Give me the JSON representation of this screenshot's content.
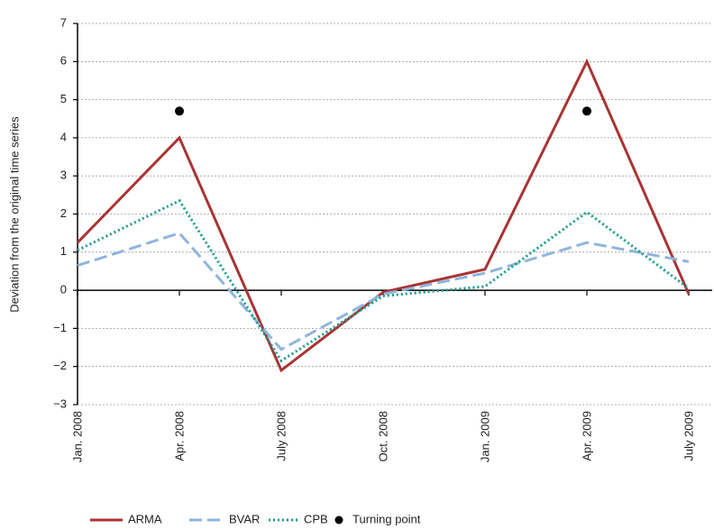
{
  "chart_data": {
    "type": "line",
    "y_label": "Deviation from the original time series",
    "categories": [
      "Jan. 2008",
      "Apr. 2008",
      "July 2008",
      "Oct. 2008",
      "Jan. 2009",
      "Apr. 2009",
      "July 2009"
    ],
    "series": [
      {
        "name": "ARMA",
        "color": "#a93434",
        "dash": "solid",
        "values": [
          1.25,
          4.0,
          -2.1,
          -0.05,
          0.55,
          6.0,
          -0.1
        ]
      },
      {
        "name": "BVAR",
        "color": "#8fb5da",
        "dash": "dashed",
        "values": [
          0.65,
          1.5,
          -1.55,
          -0.1,
          0.45,
          1.25,
          0.75
        ]
      },
      {
        "name": "CPB",
        "color": "#1a9c8c",
        "dash": "dotted",
        "values": [
          1.05,
          2.35,
          -1.85,
          -0.15,
          0.1,
          2.05,
          0.05
        ]
      },
      {
        "name": "Turning point",
        "color": "#000000",
        "marker": true,
        "values": [
          null,
          4.7,
          null,
          null,
          null,
          4.7,
          null
        ]
      }
    ],
    "ylim": [
      -3,
      7
    ],
    "yticks": [
      {
        "value": -3,
        "label": "−3"
      },
      {
        "value": -2,
        "label": "−2"
      },
      {
        "value": -1,
        "label": "−1"
      },
      0,
      1,
      2,
      3,
      4,
      5,
      6,
      7
    ],
    "grid": true
  }
}
